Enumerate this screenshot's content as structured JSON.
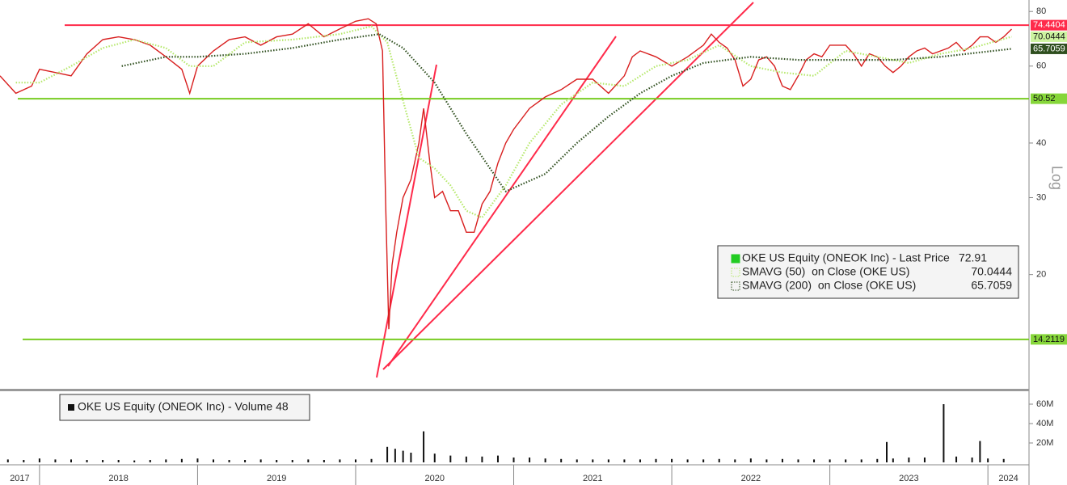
{
  "chart_data": [
    {
      "type": "line",
      "log_scale": true,
      "yaxis_label": "Log",
      "xlim": [
        2017.75,
        2024.26
      ],
      "ylim": [
        11,
        85
      ],
      "yticks": [
        20,
        30,
        40,
        60,
        80
      ],
      "series": [
        {
          "name": "OKE US Equity (ONEOK Inc) - Last Price",
          "color": "#d81e1e",
          "style": "solid",
          "x": [
            2017.75,
            2017.85,
            2017.95,
            2018.0,
            2018.1,
            2018.2,
            2018.3,
            2018.4,
            2018.5,
            2018.6,
            2018.7,
            2018.8,
            2018.9,
            2018.95,
            2019.0,
            2019.1,
            2019.2,
            2019.3,
            2019.4,
            2019.5,
            2019.6,
            2019.7,
            2019.8,
            2019.9,
            2020.0,
            2020.08,
            2020.13,
            2020.17,
            2020.19,
            2020.21,
            2020.23,
            2020.26,
            2020.3,
            2020.35,
            2020.4,
            2020.43,
            2020.47,
            2020.5,
            2020.55,
            2020.6,
            2020.65,
            2020.7,
            2020.75,
            2020.8,
            2020.85,
            2020.9,
            2020.95,
            2021.0,
            2021.1,
            2021.2,
            2021.3,
            2021.4,
            2021.5,
            2021.6,
            2021.7,
            2021.75,
            2021.8,
            2021.9,
            2022.0,
            2022.1,
            2022.2,
            2022.25,
            2022.3,
            2022.35,
            2022.4,
            2022.45,
            2022.5,
            2022.55,
            2022.6,
            2022.65,
            2022.7,
            2022.75,
            2022.8,
            2022.85,
            2022.9,
            2022.95,
            2023.0,
            2023.1,
            2023.15,
            2023.2,
            2023.25,
            2023.3,
            2023.35,
            2023.4,
            2023.45,
            2023.5,
            2023.55,
            2023.6,
            2023.65,
            2023.7,
            2023.75,
            2023.8,
            2023.85,
            2023.9,
            2023.95,
            2024.0,
            2024.05,
            2024.1,
            2024.15
          ],
          "values": [
            57,
            52,
            54,
            59,
            58,
            57,
            64,
            69,
            70,
            69,
            67,
            63,
            59,
            52,
            60,
            65,
            69,
            70,
            67,
            70,
            71,
            75,
            70,
            73,
            76,
            77,
            75,
            65,
            29,
            15,
            21,
            25,
            30,
            33,
            40,
            48,
            36,
            30,
            31,
            28,
            28,
            25,
            25,
            29,
            31,
            36,
            40,
            43,
            48,
            51,
            53,
            56,
            56,
            52,
            57,
            63,
            65,
            63,
            60,
            63,
            67,
            71,
            68,
            66,
            62,
            54,
            56,
            62,
            63,
            60,
            54,
            53,
            57,
            62,
            64,
            63,
            67,
            67,
            64,
            60,
            64,
            63,
            60,
            58,
            60,
            63,
            65,
            66,
            64,
            65,
            66,
            68,
            65,
            67,
            70,
            70,
            68,
            70,
            72.91
          ]
        },
        {
          "name": "SMAVG (50)  on Close (OKE US)",
          "color": "#b5e86a",
          "style": "dotted",
          "x": [
            2017.85,
            2018.0,
            2018.2,
            2018.4,
            2018.6,
            2018.8,
            2018.95,
            2019.1,
            2019.3,
            2019.6,
            2019.9,
            2020.1,
            2020.2,
            2020.3,
            2020.4,
            2020.5,
            2020.6,
            2020.7,
            2020.8,
            2020.95,
            2021.1,
            2021.3,
            2021.5,
            2021.7,
            2021.9,
            2022.1,
            2022.3,
            2022.5,
            2022.7,
            2022.9,
            2023.1,
            2023.3,
            2023.5,
            2023.7,
            2023.9,
            2024.15
          ],
          "values": [
            55,
            55,
            60,
            66,
            69,
            66,
            60,
            60,
            68,
            69,
            71,
            74,
            68,
            50,
            37,
            35,
            32,
            28,
            27,
            32,
            40,
            49,
            55,
            54,
            60,
            62,
            67,
            60,
            58,
            57,
            65,
            63,
            61,
            64,
            66,
            70.0444
          ]
        },
        {
          "name": "SMAVG (200)  on Close (OKE US)",
          "color": "#2f4f1f",
          "style": "dotted",
          "x": [
            2018.52,
            2018.8,
            2019.0,
            2019.3,
            2019.6,
            2019.9,
            2020.15,
            2020.3,
            2020.5,
            2020.7,
            2020.85,
            2020.95,
            2021.2,
            2021.4,
            2021.6,
            2021.8,
            2022.0,
            2022.2,
            2022.5,
            2022.8,
            2023.1,
            2023.4,
            2023.7,
            2024.15
          ],
          "values": [
            60,
            63,
            63,
            64,
            66,
            69,
            71,
            66,
            55,
            42,
            35,
            31,
            34,
            40,
            46,
            52,
            57,
            61,
            63,
            62,
            62,
            62,
            63,
            65.7059
          ]
        }
      ],
      "levels": [
        {
          "value": 74.4404,
          "color": "#ff2a4a"
        },
        {
          "value": 50.52,
          "color": "#77cc22"
        },
        {
          "value": 14.2119,
          "color": "#77cc22"
        }
      ]
    },
    {
      "type": "bar",
      "xlim": [
        2017.75,
        2024.26
      ],
      "ylim": [
        0,
        72500000
      ],
      "yticks": [
        {
          "value": 20000000,
          "label": "20M"
        },
        {
          "value": 40000000,
          "label": "40M"
        },
        {
          "value": 60000000,
          "label": "60M"
        }
      ],
      "xticks": [
        2017,
        2018,
        2019,
        2020,
        2021,
        2022,
        2023,
        2024
      ],
      "series": [
        {
          "name": "OKE US Equity (ONEOK Inc) - Volume 48",
          "color": "#111111",
          "x": [
            2017.8,
            2017.9,
            2018.0,
            2018.1,
            2018.2,
            2018.3,
            2018.4,
            2018.5,
            2018.6,
            2018.7,
            2018.8,
            2018.9,
            2019.0,
            2019.1,
            2019.2,
            2019.3,
            2019.4,
            2019.5,
            2019.6,
            2019.7,
            2019.8,
            2019.9,
            2020.0,
            2020.1,
            2020.2,
            2020.25,
            2020.3,
            2020.35,
            2020.43,
            2020.5,
            2020.6,
            2020.7,
            2020.8,
            2020.9,
            2021.0,
            2021.1,
            2021.2,
            2021.3,
            2021.4,
            2021.5,
            2021.6,
            2021.7,
            2021.8,
            2021.9,
            2022.0,
            2022.1,
            2022.2,
            2022.3,
            2022.4,
            2022.5,
            2022.6,
            2022.7,
            2022.8,
            2022.9,
            2023.0,
            2023.1,
            2023.2,
            2023.3,
            2023.36,
            2023.4,
            2023.5,
            2023.6,
            2023.72,
            2023.8,
            2023.9,
            2023.95,
            2024.0,
            2024.1
          ],
          "values": [
            3000000,
            2500000,
            4000000,
            3000000,
            3000000,
            2500000,
            2500000,
            2500000,
            2000000,
            2500000,
            3000000,
            3500000,
            4000000,
            3000000,
            2500000,
            2500000,
            3000000,
            2500000,
            2500000,
            3000000,
            2500000,
            3000000,
            3000000,
            3500000,
            16000000,
            14000000,
            12000000,
            10000000,
            32000000,
            9000000,
            7000000,
            6000000,
            6000000,
            7000000,
            5000000,
            5000000,
            4000000,
            3500000,
            3000000,
            3000000,
            3000000,
            3000000,
            3000000,
            3500000,
            3500000,
            3000000,
            3000000,
            3500000,
            3000000,
            4000000,
            3000000,
            3500000,
            3000000,
            3000000,
            3000000,
            3000000,
            3000000,
            3500000,
            21000000,
            4000000,
            5000000,
            5000000,
            60000000,
            6000000,
            5000000,
            22000000,
            4000000,
            3500000
          ]
        }
      ]
    }
  ]
}
